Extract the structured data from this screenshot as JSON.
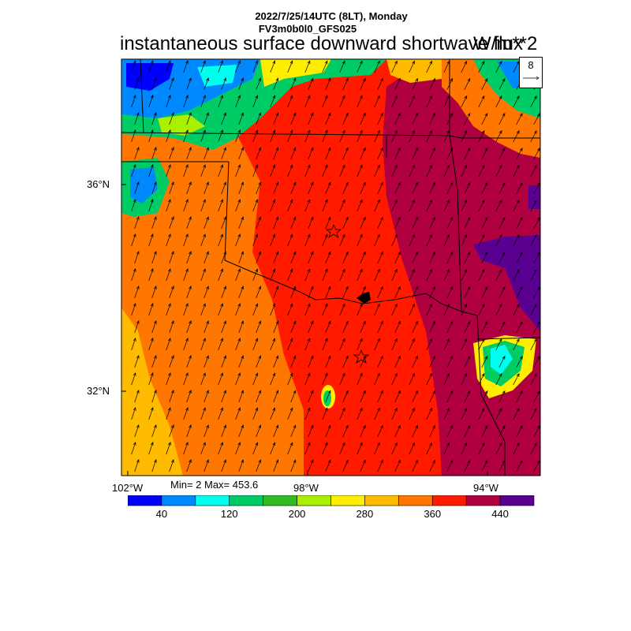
{
  "header": {
    "datetime": "2022/7/25/14UTC (8LT), Monday",
    "model": "FV3m0b0l0_GFS025",
    "title": "instantaneous surface downward shortwave flux",
    "units": "W/m**2"
  },
  "map": {
    "lat_labels": [
      "36°N",
      "32°N"
    ],
    "lon_labels": [
      "102°W",
      "98°W",
      "94°W"
    ],
    "stats": "Min= 2 Max= 453.6",
    "vector_reference": "8"
  },
  "colorbar": {
    "colors": [
      "#0000ff",
      "#0088ff",
      "#00ffee",
      "#00cc66",
      "#33bb22",
      "#aaee00",
      "#ffee00",
      "#ffbb00",
      "#ff7700",
      "#ff1a00",
      "#b00040",
      "#5a0090"
    ],
    "tick_labels": [
      "40",
      "120",
      "200",
      "280",
      "360",
      "440"
    ]
  },
  "colors": {
    "red": "#ff1a00",
    "orange": "#ff7700",
    "amber": "#ffbb00",
    "crimson": "#b00040",
    "purple": "#5a0090"
  }
}
